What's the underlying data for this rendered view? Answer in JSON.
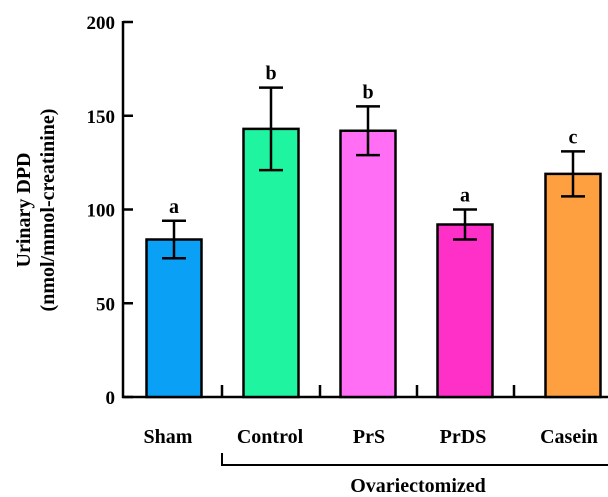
{
  "chart_data": {
    "type": "bar",
    "categories": [
      "Sham",
      "Control",
      "PrS",
      "PrDS",
      "Casein"
    ],
    "values": [
      84,
      143,
      142,
      92,
      119
    ],
    "errors": [
      10,
      22,
      13,
      8,
      12
    ],
    "significance": [
      "a",
      "b",
      "b",
      "a",
      "c"
    ],
    "colors": [
      "#0aa0f5",
      "#1ff5a0",
      "#ff6ef5",
      "#ff30c8",
      "#ffa040"
    ],
    "ylabel_line1": "Urinary DPD",
    "ylabel_line2": "(nmol/mmol-creatinine)",
    "xlabel": "",
    "ylim": [
      0,
      200
    ],
    "yticks": [
      0,
      50,
      100,
      150,
      200
    ],
    "group_label": "Ovariectomized",
    "group_members": [
      "Control",
      "PrS",
      "PrDS",
      "Casein"
    ],
    "grid": false
  }
}
